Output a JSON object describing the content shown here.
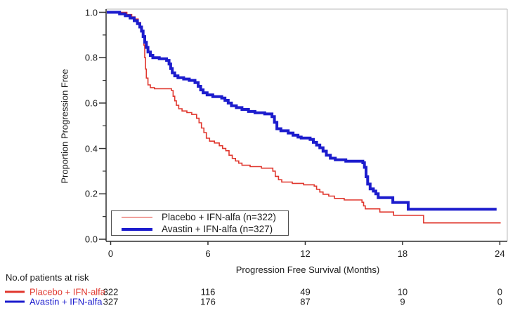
{
  "chart_data": {
    "type": "line",
    "subtype": "kaplan-meier-step",
    "title": "",
    "xlabel": "Progression Free Survival (Months)",
    "ylabel": "Proportion Progression Free",
    "xlim": [
      0,
      24
    ],
    "ylim": [
      0.0,
      1.0
    ],
    "grid": false,
    "legend_position": "inside-bottom-left",
    "axis_color": "#2e2e2e",
    "frame_color": "#c6c6c6",
    "xticks": [
      {
        "value": 0,
        "label": "0"
      },
      {
        "value": 6,
        "label": "6"
      },
      {
        "value": 12,
        "label": "12"
      },
      {
        "value": 18,
        "label": "18"
      },
      {
        "value": 24,
        "label": "24"
      }
    ],
    "yticks": [
      {
        "value": 0.0,
        "label": "0.0"
      },
      {
        "value": 0.2,
        "label": "0.2"
      },
      {
        "value": 0.4,
        "label": "0.4"
      },
      {
        "value": 0.6,
        "label": "0.6"
      },
      {
        "value": 0.8,
        "label": "0.8"
      },
      {
        "value": 1.0,
        "label": "1.0"
      }
    ],
    "yticks_minor": [
      0.1,
      0.3,
      0.5,
      0.7,
      0.9
    ],
    "series": [
      {
        "name": "Placebo + IFN-alfa",
        "legend_label": "Placebo + IFN-alfa (n=322)",
        "color": "#e0372e",
        "line_width": 1.6,
        "steps": [
          [
            0,
            1.0
          ],
          [
            1.0,
            0.99
          ],
          [
            1.3,
            0.98
          ],
          [
            1.5,
            0.97
          ],
          [
            1.7,
            0.955
          ],
          [
            1.85,
            0.935
          ],
          [
            1.95,
            0.915
          ],
          [
            2.0,
            0.89
          ],
          [
            2.05,
            0.855
          ],
          [
            2.1,
            0.8
          ],
          [
            2.15,
            0.75
          ],
          [
            2.2,
            0.71
          ],
          [
            2.3,
            0.68
          ],
          [
            2.45,
            0.668
          ],
          [
            2.7,
            0.663
          ],
          [
            3.75,
            0.655
          ],
          [
            3.85,
            0.63
          ],
          [
            3.95,
            0.61
          ],
          [
            4.05,
            0.59
          ],
          [
            4.2,
            0.575
          ],
          [
            4.4,
            0.565
          ],
          [
            4.7,
            0.558
          ],
          [
            5.0,
            0.55
          ],
          [
            5.3,
            0.533
          ],
          [
            5.45,
            0.513
          ],
          [
            5.6,
            0.49
          ],
          [
            5.75,
            0.47
          ],
          [
            5.9,
            0.445
          ],
          [
            6.1,
            0.432
          ],
          [
            6.4,
            0.424
          ],
          [
            6.7,
            0.412
          ],
          [
            6.9,
            0.4
          ],
          [
            7.1,
            0.39
          ],
          [
            7.3,
            0.37
          ],
          [
            7.5,
            0.356
          ],
          [
            7.7,
            0.345
          ],
          [
            7.9,
            0.335
          ],
          [
            8.1,
            0.326
          ],
          [
            8.6,
            0.32
          ],
          [
            9.3,
            0.313
          ],
          [
            10.0,
            0.3
          ],
          [
            10.15,
            0.277
          ],
          [
            10.35,
            0.262
          ],
          [
            10.55,
            0.252
          ],
          [
            11.2,
            0.246
          ],
          [
            11.9,
            0.24
          ],
          [
            12.55,
            0.234
          ],
          [
            12.7,
            0.22
          ],
          [
            12.9,
            0.208
          ],
          [
            13.1,
            0.198
          ],
          [
            13.45,
            0.19
          ],
          [
            13.8,
            0.18
          ],
          [
            14.4,
            0.173
          ],
          [
            15.5,
            0.163
          ],
          [
            15.6,
            0.147
          ],
          [
            15.7,
            0.134
          ],
          [
            16.6,
            0.12
          ],
          [
            17.45,
            0.105
          ],
          [
            19.3,
            0.072
          ],
          [
            24.05,
            0.072
          ]
        ]
      },
      {
        "name": "Avastin + IFN-alfa",
        "legend_label": "Avastin + IFN-alfa (n=327)",
        "color": "#1c1ccd",
        "line_width": 4,
        "steps": [
          [
            0,
            1.0
          ],
          [
            0.55,
            0.993
          ],
          [
            0.9,
            0.985
          ],
          [
            1.2,
            0.975
          ],
          [
            1.45,
            0.963
          ],
          [
            1.65,
            0.95
          ],
          [
            1.8,
            0.935
          ],
          [
            1.9,
            0.917
          ],
          [
            2.0,
            0.893
          ],
          [
            2.1,
            0.868
          ],
          [
            2.2,
            0.845
          ],
          [
            2.3,
            0.825
          ],
          [
            2.45,
            0.81
          ],
          [
            2.6,
            0.8
          ],
          [
            3.0,
            0.795
          ],
          [
            3.45,
            0.788
          ],
          [
            3.6,
            0.772
          ],
          [
            3.7,
            0.752
          ],
          [
            3.8,
            0.733
          ],
          [
            3.95,
            0.72
          ],
          [
            4.15,
            0.712
          ],
          [
            4.5,
            0.706
          ],
          [
            4.85,
            0.7
          ],
          [
            5.2,
            0.69
          ],
          [
            5.4,
            0.674
          ],
          [
            5.55,
            0.658
          ],
          [
            5.7,
            0.645
          ],
          [
            5.95,
            0.636
          ],
          [
            6.3,
            0.628
          ],
          [
            6.85,
            0.622
          ],
          [
            7.05,
            0.612
          ],
          [
            7.25,
            0.6
          ],
          [
            7.45,
            0.588
          ],
          [
            7.75,
            0.58
          ],
          [
            8.1,
            0.572
          ],
          [
            8.5,
            0.563
          ],
          [
            8.9,
            0.557
          ],
          [
            9.5,
            0.552
          ],
          [
            9.95,
            0.54
          ],
          [
            10.1,
            0.515
          ],
          [
            10.25,
            0.487
          ],
          [
            10.5,
            0.478
          ],
          [
            10.95,
            0.468
          ],
          [
            11.25,
            0.458
          ],
          [
            11.55,
            0.45
          ],
          [
            11.75,
            0.446
          ],
          [
            12.3,
            0.44
          ],
          [
            12.5,
            0.427
          ],
          [
            12.7,
            0.415
          ],
          [
            12.9,
            0.403
          ],
          [
            13.1,
            0.388
          ],
          [
            13.3,
            0.37
          ],
          [
            13.55,
            0.357
          ],
          [
            13.85,
            0.35
          ],
          [
            14.5,
            0.344
          ],
          [
            15.55,
            0.337
          ],
          [
            15.65,
            0.317
          ],
          [
            15.75,
            0.275
          ],
          [
            15.85,
            0.243
          ],
          [
            16.0,
            0.222
          ],
          [
            16.2,
            0.212
          ],
          [
            16.35,
            0.2
          ],
          [
            16.5,
            0.183
          ],
          [
            17.4,
            0.162
          ],
          [
            18.35,
            0.132
          ],
          [
            23.8,
            0.132
          ]
        ]
      }
    ],
    "at_risk": {
      "header": "No.of patients at risk",
      "months": [
        0,
        6,
        12,
        18,
        24
      ],
      "rows": [
        {
          "label": "Placebo + IFN-alfa",
          "color": "#e0372e",
          "counts": [
            "322",
            "116",
            "49",
            "10",
            "0"
          ]
        },
        {
          "label": "Avastin + IFN-alfa",
          "color": "#1c1ccd",
          "counts": [
            "327",
            "176",
            "87",
            "9",
            "0"
          ]
        }
      ]
    }
  }
}
